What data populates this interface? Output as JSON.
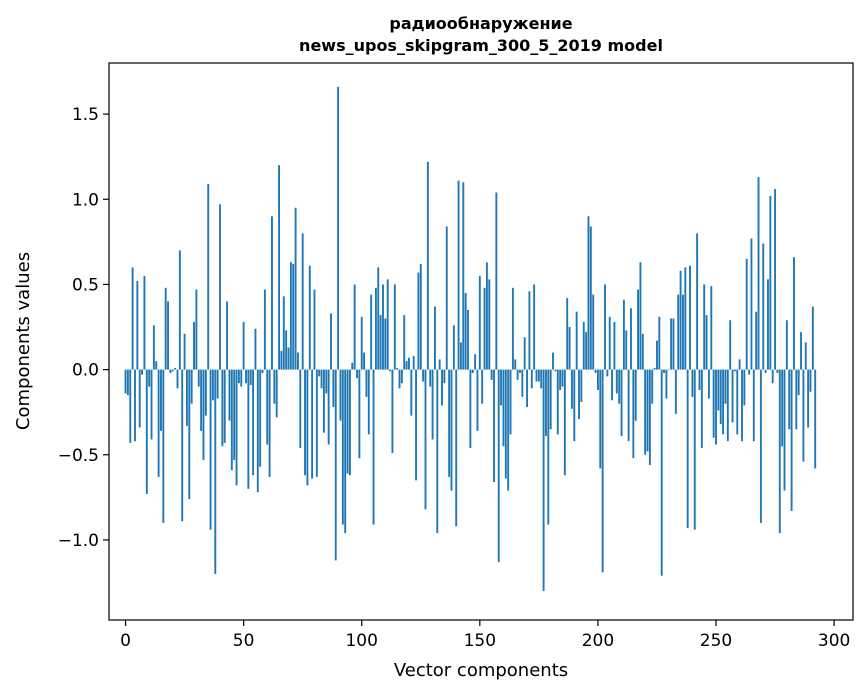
{
  "chart_data": {
    "type": "bar",
    "title": "радиообнаружение",
    "subtitle": "news_upos_skipgram_300_5_2019 model",
    "xlabel": "Vector components",
    "ylabel": "Components values",
    "xlim": [
      -7,
      308
    ],
    "ylim": [
      -1.47,
      1.8
    ],
    "xticks": [
      0,
      50,
      100,
      150,
      200,
      250,
      300
    ],
    "xtick_labels": [
      "0",
      "50",
      "100",
      "150",
      "200",
      "250",
      "300"
    ],
    "yticks": [
      -1.0,
      -0.5,
      0.0,
      0.5,
      1.0,
      1.5
    ],
    "ytick_labels": [
      "−1.0",
      "−0.5",
      "0.0",
      "0.5",
      "1.0",
      "1.5"
    ],
    "grid": false,
    "bar_color": "#1f77b4",
    "series": [
      {
        "values": [
          -0.14,
          -0.15,
          -0.43,
          0.6,
          -0.42,
          0.52,
          -0.34,
          -0.03,
          0.55,
          -0.73,
          -0.1,
          -0.41,
          0.26,
          0.05,
          -0.63,
          -0.36,
          -0.9,
          0.48,
          0.4,
          -0.02,
          -0.01,
          0.01,
          -0.11,
          0.7,
          -0.89,
          0.21,
          -0.33,
          -0.76,
          -0.2,
          0.28,
          0.47,
          -0.1,
          -0.36,
          -0.53,
          -0.27,
          1.09,
          -0.94,
          -0.18,
          -1.2,
          -0.17,
          0.97,
          -0.45,
          -0.43,
          0.4,
          -0.3,
          -0.59,
          -0.53,
          -0.68,
          -0.08,
          -0.1,
          0.28,
          -0.08,
          -0.7,
          -0.09,
          -0.62,
          0.24,
          -0.72,
          -0.57,
          -0.02,
          0.47,
          -0.44,
          -0.63,
          0.9,
          -0.2,
          -0.28,
          1.2,
          0.11,
          0.43,
          0.23,
          0.13,
          0.63,
          0.62,
          0.95,
          0.1,
          -0.46,
          0.8,
          -0.62,
          -0.68,
          0.61,
          -0.64,
          0.47,
          -0.63,
          -0.04,
          -0.11,
          -0.37,
          -0.14,
          -0.44,
          0.33,
          -0.22,
          -1.12,
          1.66,
          -0.3,
          -0.91,
          -0.96,
          -0.61,
          -0.62,
          0.04,
          0.5,
          -0.05,
          -0.52,
          0.31,
          0.1,
          -0.16,
          -0.38,
          0.44,
          -0.91,
          0.48,
          0.6,
          0.32,
          0.5,
          0.3,
          0.53,
          -0.01,
          -0.49,
          0.5,
          0.01,
          -0.11,
          -0.08,
          0.32,
          0.05,
          0.07,
          -0.27,
          0.08,
          -0.65,
          0.57,
          0.62,
          -0.07,
          -0.82,
          1.22,
          -0.1,
          -0.41,
          0.37,
          -0.96,
          0.06,
          -0.21,
          -0.08,
          0.84,
          -0.63,
          -0.71,
          0.26,
          -0.92,
          1.11,
          0.16,
          1.1,
          0.45,
          0.35,
          -0.46,
          -0.02,
          0.09,
          -0.36,
          0.55,
          -0.2,
          0.48,
          0.63,
          0.53,
          -0.06,
          -0.66,
          1.04,
          -1.13,
          -0.21,
          -0.45,
          -0.64,
          -0.71,
          -0.38,
          0.48,
          0.06,
          -0.06,
          -0.02,
          -0.16,
          0.19,
          -0.22,
          0.46,
          -0.11,
          0.5,
          -0.07,
          -0.07,
          -0.11,
          -1.3,
          -0.39,
          -0.91,
          -0.35,
          0.1,
          -0.01,
          -0.38,
          -0.12,
          -0.1,
          -0.62,
          0.42,
          0.25,
          -0.23,
          -0.42,
          0.34,
          -0.29,
          -0.19,
          0.28,
          0.22,
          0.9,
          0.84,
          0.44,
          -0.02,
          -0.12,
          -0.58,
          -1.19,
          0.5,
          -0.04,
          0.31,
          -0.18,
          0.28,
          -0.14,
          -0.2,
          -0.39,
          0.41,
          0.23,
          -0.42,
          0.36,
          -0.52,
          -0.3,
          0.47,
          0.63,
          0.21,
          -0.5,
          -0.48,
          -0.56,
          -0.2,
          0.01,
          0.17,
          0.31,
          -1.21,
          -0.02,
          -0.17,
          0.0,
          0.3,
          0.3,
          -0.26,
          0.44,
          0.58,
          0.44,
          0.6,
          -0.93,
          0.61,
          -0.16,
          -0.94,
          0.8,
          -0.12,
          -0.46,
          0.5,
          0.32,
          -0.17,
          0.49,
          -0.4,
          -0.44,
          -0.24,
          -0.32,
          -0.38,
          -0.2,
          -0.42,
          0.29,
          -0.31,
          -0.01,
          -0.38,
          0.06,
          -0.42,
          -0.21,
          0.65,
          -0.03,
          0.77,
          -0.42,
          0.34,
          1.13,
          -0.9,
          0.74,
          -0.02,
          0.53,
          1.02,
          -0.08,
          1.06,
          -0.02,
          -0.96,
          -0.45,
          -0.71,
          0.29,
          -0.35,
          -0.83,
          0.66,
          -0.35,
          -0.15,
          0.22,
          -0.54,
          0.16,
          -0.34,
          -0.13,
          0.37,
          -0.58
        ]
      }
    ]
  }
}
